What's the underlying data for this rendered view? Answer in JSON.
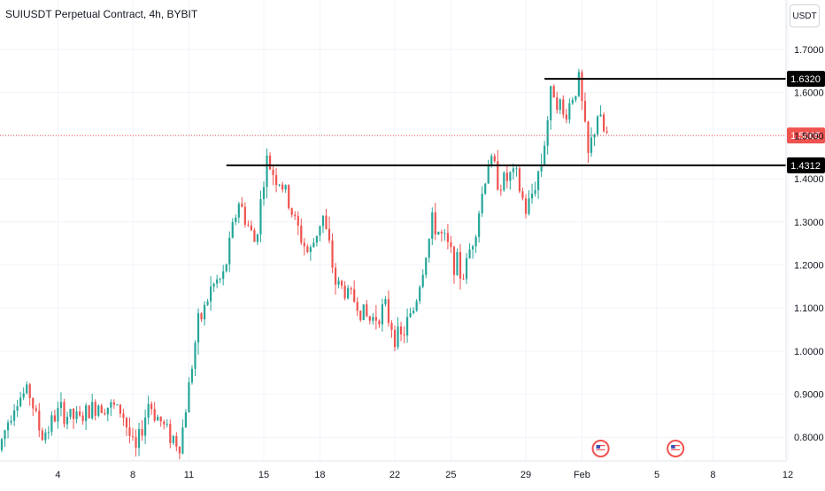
{
  "header": {
    "title": "SUIUSDT Perpetual Contract, 4h, BYBIT"
  },
  "price_axis": {
    "currency_label": "USDT"
  },
  "colors": {
    "up": "#26a69a",
    "down": "#ef5350",
    "grid": "#f0f3fa",
    "axis_text": "#131722",
    "current_price_line": "#ef5350",
    "level_line": "#000000"
  },
  "chart_data": {
    "type": "candlestick",
    "title": "SUIUSDT Perpetual Contract, 4h, BYBIT",
    "ylabel": "USDT",
    "ylim": [
      0.745,
      1.815
    ],
    "y_ticks": [
      "0.8000",
      "0.9000",
      "1.0000",
      "1.1000",
      "1.2000",
      "1.3000",
      "1.4000",
      "1.5000",
      "1.6000",
      "1.7000"
    ],
    "x_ticks": [
      "4",
      "8",
      "11",
      "15",
      "18",
      "22",
      "25",
      "29",
      "Feb",
      "5",
      "8",
      "12"
    ],
    "x_range": [
      "Jan 1",
      "Feb 12"
    ],
    "current_price": {
      "value": 1.5005,
      "label": "1.5005"
    },
    "horizontal_levels": [
      {
        "value": 1.632,
        "label": "1.6320",
        "from": "Jan 30"
      },
      {
        "value": 1.4312,
        "label": "1.4312",
        "from": "Jan 13"
      }
    ],
    "price_path": [
      [
        "Jan 1",
        0.77
      ],
      [
        "Jan 1.8",
        0.88
      ],
      [
        "Jan 2.6",
        0.91
      ],
      [
        "Jan 3.3",
        0.8
      ],
      [
        "Jan 4.2",
        0.86
      ],
      [
        "Jan 5.3",
        0.84
      ],
      [
        "Jan 6.4",
        0.88
      ],
      [
        "Jan 7.6",
        0.86
      ],
      [
        "Jan 8.3",
        0.76
      ],
      [
        "Jan 9.0",
        0.88
      ],
      [
        "Jan 9.9",
        0.82
      ],
      [
        "Jan 10.7",
        0.78
      ],
      [
        "Jan 11.6",
        1.05
      ],
      [
        "Jan 12.4",
        1.15
      ],
      [
        "Jan 13.0",
        1.17
      ],
      [
        "Jan 13.8",
        1.35
      ],
      [
        "Jan 14.7",
        1.25
      ],
      [
        "Jan 15.3",
        1.44
      ],
      [
        "Jan 16.2",
        1.38
      ],
      [
        "Jan 17.0",
        1.28
      ],
      [
        "Jan 17.6",
        1.22
      ],
      [
        "Jan 18.3",
        1.32
      ],
      [
        "Jan 19.0",
        1.16
      ],
      [
        "Jan 20.0",
        1.12
      ],
      [
        "Jan 20.8",
        1.07
      ],
      [
        "Jan 21.6",
        1.1
      ],
      [
        "Jan 22.4",
        1.02
      ],
      [
        "Jan 23.2",
        1.1
      ],
      [
        "Jan 24.2",
        1.3
      ],
      [
        "Jan 25.0",
        1.24
      ],
      [
        "Jan 25.8",
        1.17
      ],
      [
        "Jan 26.6",
        1.31
      ],
      [
        "Jan 27.2",
        1.45
      ],
      [
        "Jan 27.8",
        1.39
      ],
      [
        "Jan 28.6",
        1.41
      ],
      [
        "Jan 29.2",
        1.32
      ],
      [
        "Jan 30.0",
        1.44
      ],
      [
        "Jan 30.6",
        1.62
      ],
      [
        "Jan 31.2",
        1.54
      ],
      [
        "Feb 1.0",
        1.63
      ],
      [
        "Feb 1.5",
        1.45
      ],
      [
        "Feb 2.0",
        1.55
      ],
      [
        "Feb 2.4",
        1.5
      ]
    ],
    "event_markers": [
      {
        "date": "Feb 2",
        "icon": "us-flag-icon"
      },
      {
        "date": "Feb 6",
        "icon": "us-flag-icon"
      }
    ]
  }
}
